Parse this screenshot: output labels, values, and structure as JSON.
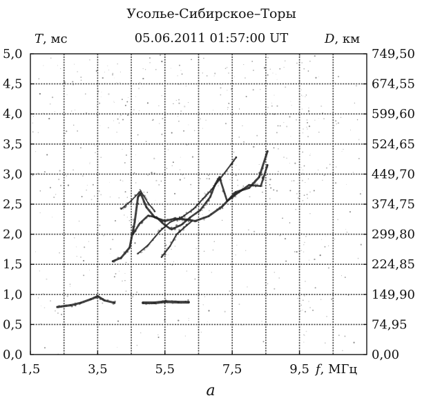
{
  "chart_data": {
    "type": "scatter",
    "title": "Усолье-Сибирское–Торы",
    "subtitle": "05.06.2011    01:57:00 UT",
    "left_axis": {
      "symbol": "T",
      "unit": ", мс",
      "range": [
        0,
        5
      ],
      "ticks": [
        0,
        0.5,
        1.0,
        1.5,
        2.0,
        2.5,
        3.0,
        3.5,
        4.0,
        4.5,
        5.0
      ],
      "tick_labels": [
        "0,0",
        "0,5",
        "1,0",
        "1,5",
        "2,0",
        "2,5",
        "3,0",
        "3,5",
        "4,0",
        "4,5",
        "5,0"
      ]
    },
    "right_axis": {
      "symbol": "D",
      "unit": ", км",
      "range": [
        0,
        749.5
      ],
      "tick_labels": [
        "0,00",
        "74,95",
        "149,90",
        "224,85",
        "299,80",
        "374,75",
        "449,70",
        "524,65",
        "599,60",
        "674,55",
        "749,50"
      ]
    },
    "x_axis": {
      "symbol": "f",
      "unit": ", МГц",
      "range": [
        1.5,
        11.5
      ],
      "ticks": [
        1.5,
        3.5,
        5.5,
        7.5,
        9.5
      ],
      "tick_labels": [
        "1,5",
        "3,5",
        "5,5",
        "7,5",
        "9,5"
      ],
      "grid_values": [
        1.5,
        2.5,
        3.5,
        4.5,
        5.5,
        6.5,
        7.5,
        8.5,
        9.5,
        10.5,
        11.5
      ]
    },
    "grid": true,
    "series": [
      {
        "points": [
          [
            2.3,
            0.79
          ],
          [
            2.7,
            0.82
          ],
          [
            3.0,
            0.86
          ],
          [
            3.3,
            0.92
          ],
          [
            3.5,
            0.97
          ],
          [
            3.7,
            0.9
          ],
          [
            4.0,
            0.86
          ]
        ],
        "weight": 3.2
      },
      {
        "points": [
          [
            4.85,
            0.86
          ],
          [
            5.2,
            0.86
          ],
          [
            5.5,
            0.88
          ],
          [
            5.9,
            0.87
          ],
          [
            6.2,
            0.87
          ]
        ],
        "weight": 4.0
      },
      {
        "points": [
          [
            3.95,
            1.55
          ],
          [
            4.2,
            1.61
          ],
          [
            4.45,
            1.78
          ],
          [
            4.6,
            2.2
          ],
          [
            4.7,
            2.62
          ],
          [
            4.78,
            2.68
          ],
          [
            4.95,
            2.45
          ],
          [
            5.2,
            2.28
          ],
          [
            5.5,
            2.22
          ],
          [
            5.8,
            2.26
          ],
          [
            6.05,
            2.25
          ],
          [
            6.4,
            2.22
          ],
          [
            6.8,
            2.3
          ],
          [
            7.2,
            2.46
          ],
          [
            7.6,
            2.7
          ],
          [
            8.0,
            2.77
          ],
          [
            8.3,
            2.95
          ],
          [
            8.55,
            3.38
          ]
        ],
        "weight": 3.0
      },
      {
        "points": [
          [
            4.55,
            2.0
          ],
          [
            4.75,
            2.18
          ],
          [
            5.0,
            2.31
          ],
          [
            5.25,
            2.28
          ],
          [
            5.5,
            2.15
          ],
          [
            5.7,
            2.08
          ],
          [
            6.0,
            2.16
          ],
          [
            6.25,
            2.28
          ],
          [
            6.55,
            2.4
          ],
          [
            6.85,
            2.62
          ],
          [
            7.0,
            2.84
          ],
          [
            7.12,
            2.95
          ],
          [
            7.35,
            2.55
          ],
          [
            7.7,
            2.7
          ],
          [
            8.0,
            2.82
          ],
          [
            8.35,
            2.8
          ],
          [
            8.55,
            3.15
          ]
        ],
        "weight": 2.7
      },
      {
        "points": [
          [
            4.7,
            1.68
          ],
          [
            5.0,
            1.82
          ],
          [
            5.35,
            2.05
          ],
          [
            5.65,
            2.2
          ],
          [
            6.0,
            2.28
          ],
          [
            6.35,
            2.42
          ],
          [
            6.65,
            2.6
          ],
          [
            6.9,
            2.75
          ],
          [
            7.15,
            2.93
          ],
          [
            7.45,
            3.15
          ],
          [
            7.62,
            3.28
          ]
        ],
        "weight": 2.1
      },
      {
        "points": [
          [
            5.4,
            1.62
          ],
          [
            5.65,
            1.8
          ],
          [
            5.85,
            2.0
          ],
          [
            6.05,
            2.1
          ],
          [
            6.3,
            2.22
          ]
        ],
        "weight": 2.2
      },
      {
        "points": [
          [
            4.2,
            2.42
          ],
          [
            4.5,
            2.56
          ],
          [
            4.78,
            2.72
          ],
          [
            5.0,
            2.52
          ],
          [
            5.2,
            2.38
          ]
        ],
        "weight": 1.8
      }
    ],
    "caption": "а"
  }
}
